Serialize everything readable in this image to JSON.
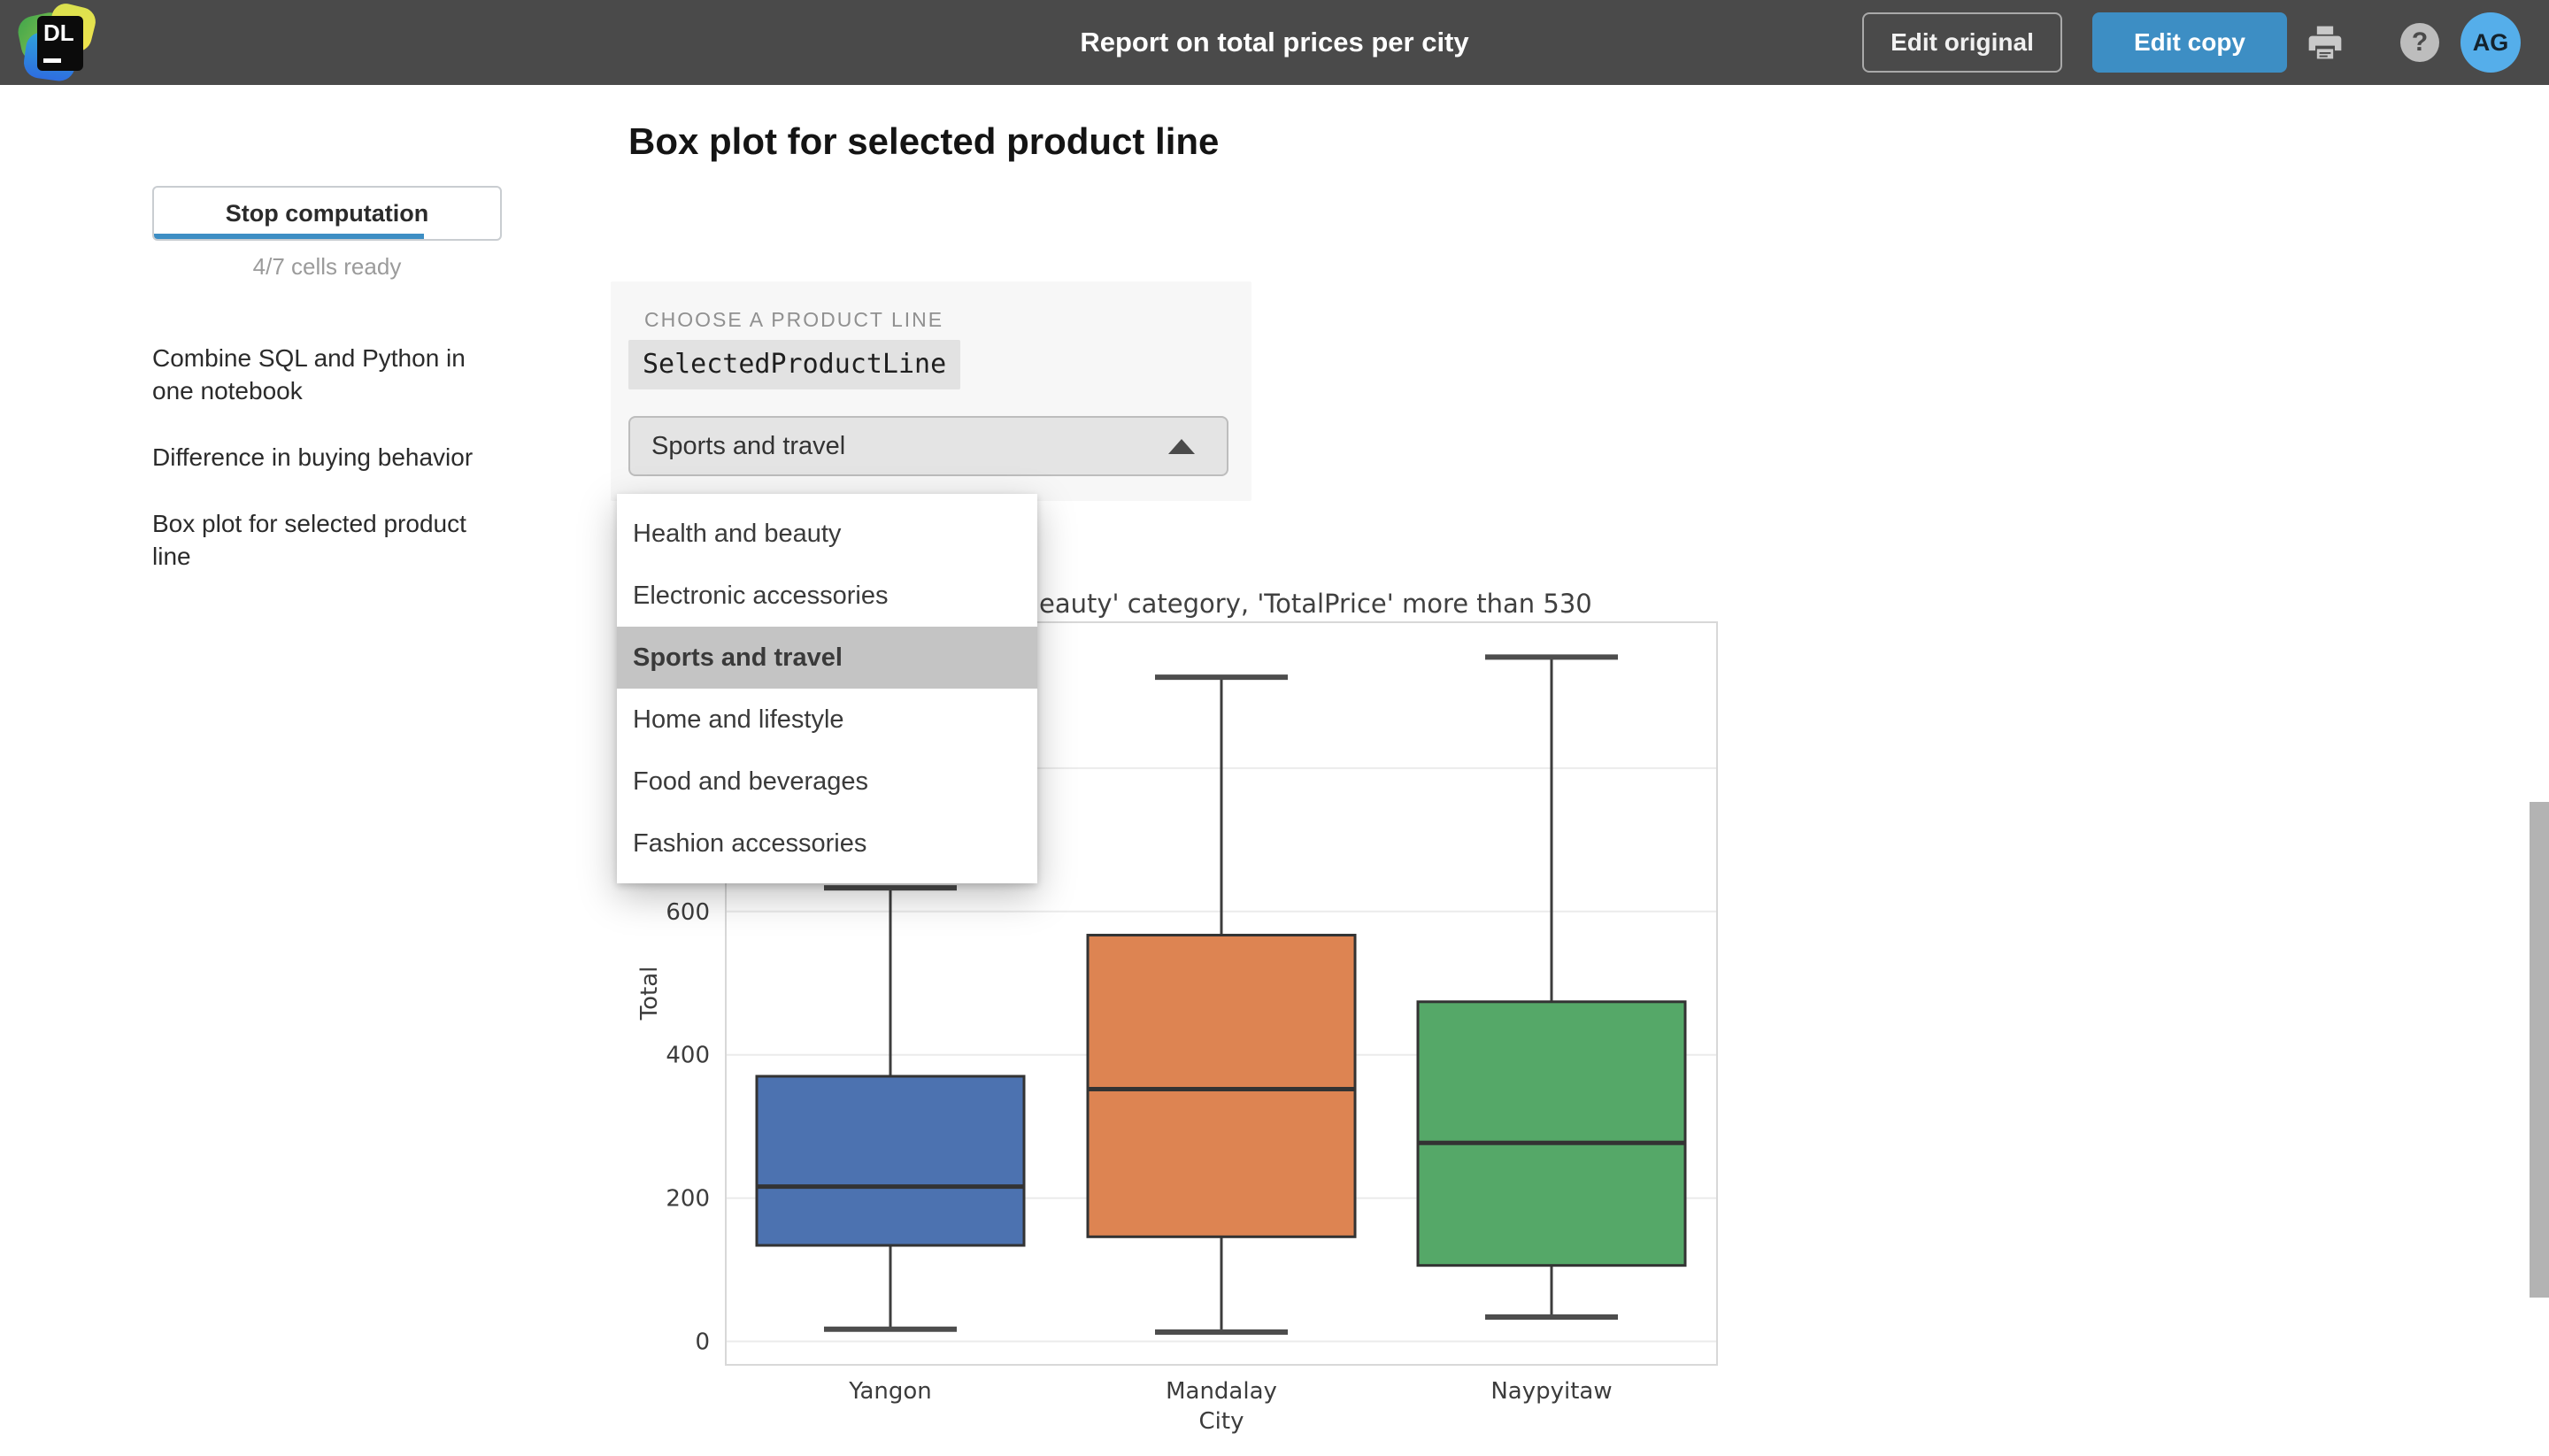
{
  "top_bar": {
    "logo_text": "DL",
    "title": "Report on total prices per city",
    "edit_original_label": "Edit original",
    "edit_copy_label": "Edit copy",
    "help_glyph": "?",
    "avatar_initials": "AG",
    "colors": {
      "bar_bg": "#4a4a4a",
      "edit_copy_bg": "#3d8ec4",
      "avatar_bg": "#55aeea"
    }
  },
  "sidebar": {
    "stop_button_label": "Stop computation",
    "progress_percent": 78,
    "cells_ready_text": "4/7 cells ready",
    "items": [
      {
        "label": "Combine SQL and Python in one notebook"
      },
      {
        "label": "Difference in buying behavior"
      },
      {
        "label": "Box plot for selected product line"
      }
    ]
  },
  "main": {
    "heading": "Box plot for selected product line",
    "control_card": {
      "label": "CHOOSE A PRODUCT LINE",
      "variable_name": "SelectedProductLine",
      "selected_value": "Sports and travel"
    },
    "dropdown": {
      "options": [
        "Health and beauty",
        "Electronic accessories",
        "Sports and travel",
        "Home and lifestyle",
        "Food and beverages",
        "Fashion accessories"
      ],
      "selected_index": 2
    }
  },
  "chart_data": {
    "type": "boxplot",
    "title_visible_fragment": "eauty' category, 'TotalPrice' more than 530",
    "xlabel": "City",
    "ylabel": "Total",
    "categories": [
      "Yangon",
      "Mandalay",
      "Naypyitaw"
    ],
    "y_ticks": [
      0,
      200,
      400,
      600,
      800
    ],
    "ylim": [
      -33,
      1004
    ],
    "grid": true,
    "legend": false,
    "series": [
      {
        "city": "Yangon",
        "whisker_low": 17,
        "q1": 134,
        "median": 216,
        "q3": 370,
        "whisker_high": 633,
        "color": "#4C72B0"
      },
      {
        "city": "Mandalay",
        "whisker_low": 13,
        "q1": 146,
        "median": 352,
        "q3": 567,
        "whisker_high": 927,
        "color": "#DD8452"
      },
      {
        "city": "Naypyitaw",
        "whisker_low": 34,
        "q1": 106,
        "median": 277,
        "q3": 474,
        "whisker_high": 955,
        "color": "#55A868"
      }
    ]
  }
}
